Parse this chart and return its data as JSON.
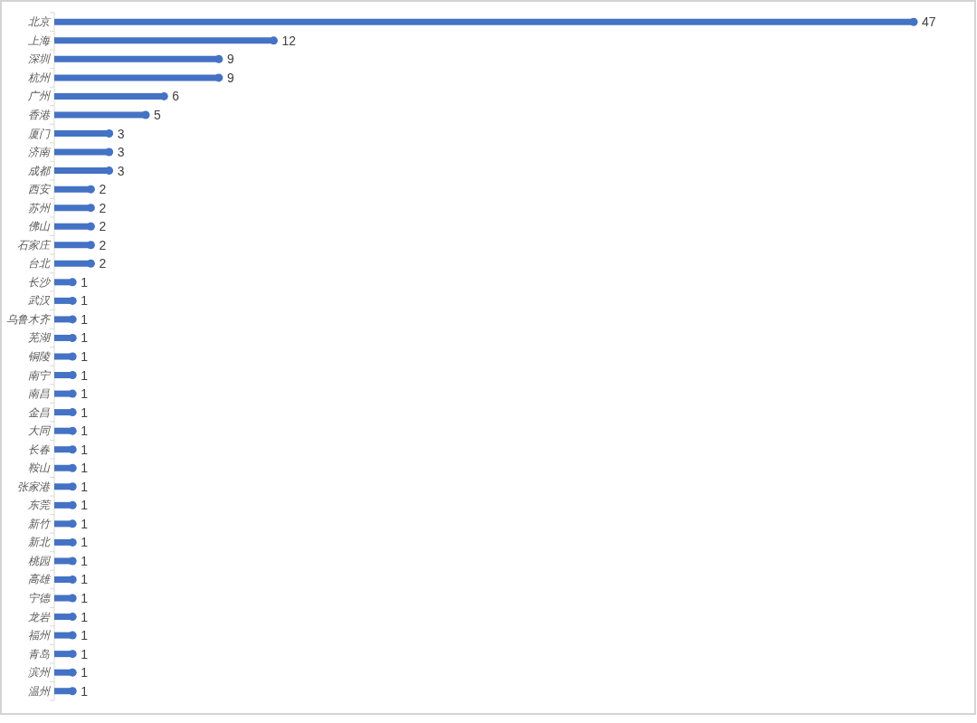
{
  "chart_data": {
    "type": "lollipop",
    "orientation": "horizontal",
    "categories": [
      "北京",
      "上海",
      "深圳",
      "杭州",
      "广州",
      "香港",
      "厦门",
      "济南",
      "成都",
      "西安",
      "苏州",
      "佛山",
      "石家庄",
      "台北",
      "长沙",
      "武汉",
      "乌鲁木齐",
      "芜湖",
      "铜陵",
      "南宁",
      "南昌",
      "金昌",
      "大同",
      "长春",
      "鞍山",
      "张家港",
      "东莞",
      "新竹",
      "新北",
      "桃园",
      "高雄",
      "宁德",
      "龙岩",
      "福州",
      "青岛",
      "滨州",
      "温州"
    ],
    "values": [
      47,
      12,
      9,
      9,
      6,
      5,
      3,
      3,
      3,
      2,
      2,
      2,
      2,
      2,
      1,
      1,
      1,
      1,
      1,
      1,
      1,
      1,
      1,
      1,
      1,
      1,
      1,
      1,
      1,
      1,
      1,
      1,
      1,
      1,
      1,
      1,
      1
    ],
    "color": "#4472c4",
    "marker": "circle",
    "data_labels": true
  }
}
